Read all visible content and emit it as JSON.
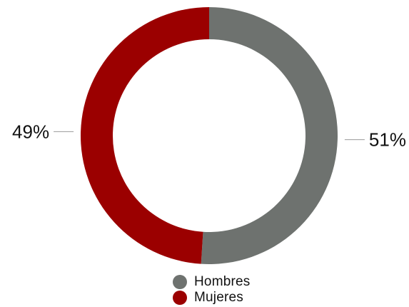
{
  "chart_data": {
    "type": "pie",
    "variant": "donut",
    "slices": [
      {
        "name": "Hombres",
        "value": 51,
        "label": "51%",
        "color": "#6e726f"
      },
      {
        "name": "Mujeres",
        "value": 49,
        "label": "49%",
        "color": "#9b0000"
      }
    ],
    "legend": {
      "position": "bottom",
      "items": [
        "Hombres",
        "Mujeres"
      ]
    }
  }
}
